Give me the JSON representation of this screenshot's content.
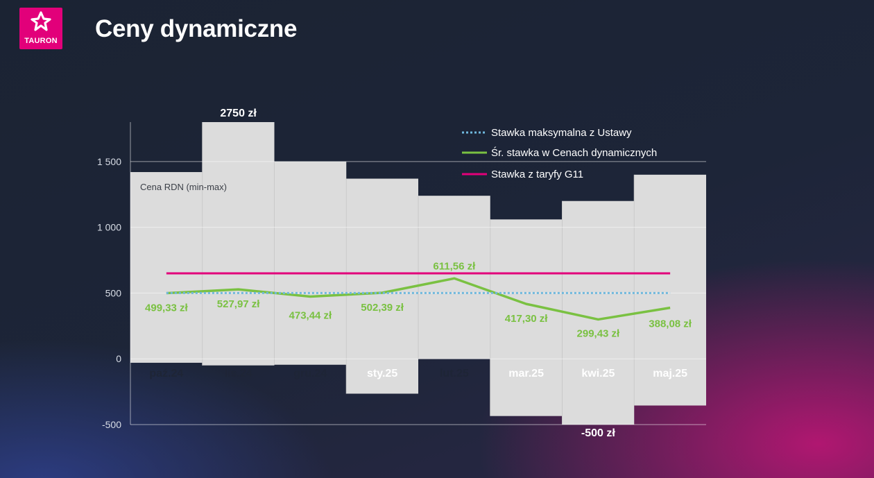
{
  "header": {
    "logo_text": "TAURON",
    "title": "Ceny dynamiczne"
  },
  "colors": {
    "brand": "#e2007a",
    "avg_line": "#7ac142",
    "g11_line": "#e2007a",
    "max_line": "#6fb8dd",
    "bar_fill": "#dcdcdc"
  },
  "chart_data": {
    "type": "bar",
    "categories": [
      "paź.24",
      "lis.24",
      "gru.24",
      "sty.25",
      "lut.25",
      "mar.25",
      "kwi.25",
      "maj.25"
    ],
    "range_label": "Cena RDN (min-max)",
    "ranges": [
      {
        "min": -30,
        "max": 1420
      },
      {
        "min": -50,
        "max": 2750
      },
      {
        "min": -45,
        "max": 1500
      },
      {
        "min": -265,
        "max": 1370
      },
      {
        "min": 0,
        "max": 1240
      },
      {
        "min": -435,
        "max": 1060
      },
      {
        "min": -500,
        "max": 1200
      },
      {
        "min": -355,
        "max": 1400
      }
    ],
    "series": [
      {
        "name": "Stawka maksymalna z Ustawy",
        "type": "line",
        "style": "dotted",
        "values": [
          500,
          500,
          500,
          500,
          500,
          500,
          500,
          500
        ]
      },
      {
        "name": "Śr. stawka w Cenach dynamicznych",
        "type": "line",
        "values": [
          499.33,
          527.97,
          473.44,
          502.39,
          611.56,
          417.3,
          299.43,
          388.08
        ],
        "labels": [
          "499,33 zł",
          "527,97 zł",
          "473,44 zł",
          "502,39 zł",
          "611,56 zł",
          "417,30 zł",
          "299,43 zł",
          "388,08 zł"
        ]
      },
      {
        "name": "Stawka z taryfy G11",
        "type": "line",
        "values": [
          650,
          650,
          650,
          650,
          650,
          650,
          650,
          650
        ]
      }
    ],
    "extreme_labels": {
      "max": "2750 zł",
      "min": "-500 zł"
    },
    "y_ticks": [
      {
        "value": 1500,
        "label": "1 500"
      },
      {
        "value": 1000,
        "label": "1 000"
      },
      {
        "value": 500,
        "label": "500"
      },
      {
        "value": 0,
        "label": "0"
      },
      {
        "value": -500,
        "label": "-500"
      }
    ],
    "ylim": [
      -500,
      1800
    ],
    "grid": true,
    "legend_position": "top-right"
  }
}
